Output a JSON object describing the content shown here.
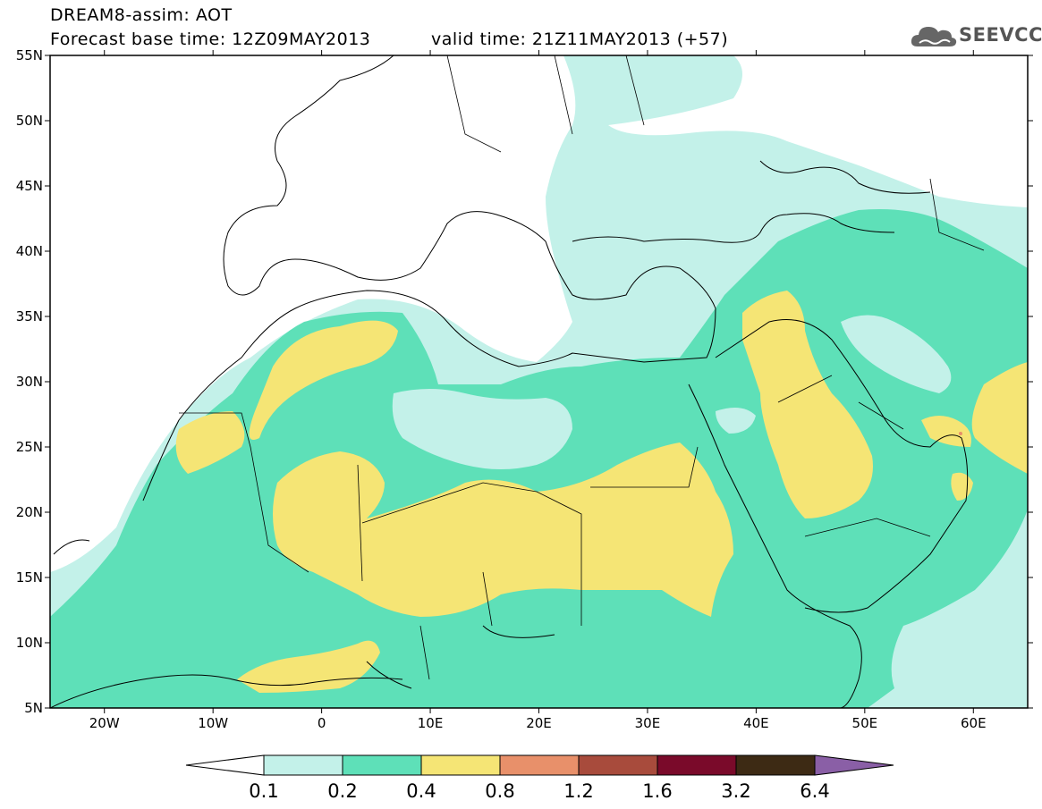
{
  "header": {
    "title": "DREAM8-assim: AOT",
    "base_time": "Forecast base time: 12Z09MAY2013",
    "valid_time": "valid time: 21Z11MAY2013 (+57)",
    "logo_text": "SEEVCCC"
  },
  "map": {
    "variable": "Aerosol optical thickness",
    "lon_range": [
      -25,
      65
    ],
    "lat_range": [
      5,
      55
    ],
    "lat_ticks": [
      "55N",
      "50N",
      "45N",
      "40N",
      "35N",
      "30N",
      "25N",
      "20N",
      "15N",
      "10N",
      "5N"
    ],
    "lon_ticks": [
      "20W",
      "10W",
      "0",
      "10E",
      "20E",
      "30E",
      "40E",
      "50E",
      "60E"
    ]
  },
  "colorbar": {
    "labels": [
      "0.1",
      "0.2",
      "0.4",
      "0.8",
      "1.2",
      "1.6",
      "3.2",
      "6.4"
    ],
    "colors": [
      "#c3f1e9",
      "#5ee0b8",
      "#f5e575",
      "#e8906a",
      "#a84b3c",
      "#7a0a2a",
      "#3d2a14",
      "#8a5fa6"
    ]
  }
}
